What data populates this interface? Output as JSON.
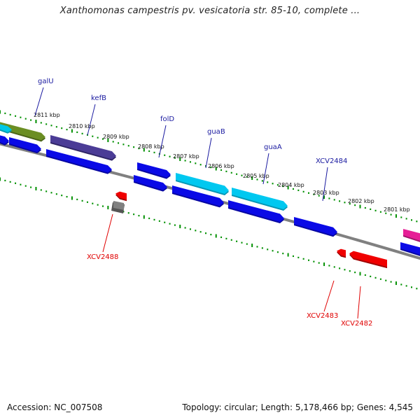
{
  "title": "Xanthomonas campestris pv. vesicatoria str. 85-10, complete ...",
  "footer": {
    "accession": "Accession: NC_007508",
    "summary": "Topology: circular; Length: 5,178,466 bp; Genes: 4,545"
  },
  "colors": {
    "forward_gene": "#0a0ae6",
    "reverse_gene": "#f00000",
    "backbone": "#808080",
    "tick": "#009000",
    "gene_label_top": "#1a1aa0",
    "gene_label_bottom": "#e00000"
  },
  "scale": {
    "kbp_labels": [
      "2811 kbp",
      "2810 kbp",
      "2809 kbp",
      "2808 kbp",
      "2807 kbp",
      "2806 kbp",
      "2805 kbp",
      "2804 kbp",
      "2803 kbp",
      "2802 kbp",
      "2801 kbp"
    ]
  },
  "genes_top": [
    {
      "label": "galU"
    },
    {
      "label": "kefB"
    },
    {
      "label": "folD"
    },
    {
      "label": "guaB"
    },
    {
      "label": "guaA"
    },
    {
      "label": "XCV2484"
    }
  ],
  "genes_bottom": [
    {
      "label": "XCV2488"
    },
    {
      "label": "XCV2483"
    },
    {
      "label": "XCV2482"
    }
  ]
}
